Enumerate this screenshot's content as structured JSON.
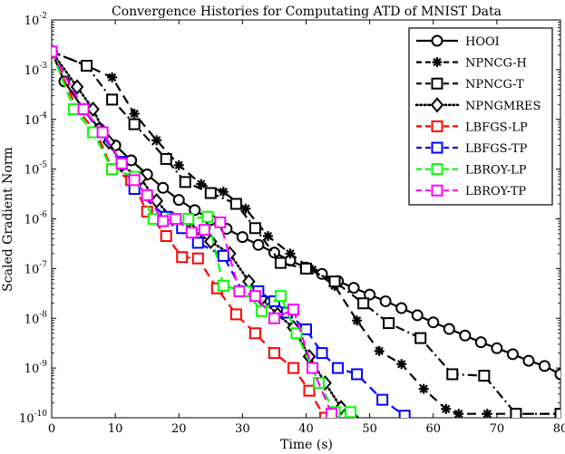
{
  "chart_data": {
    "type": "line",
    "title": "Convergence Histories for Computating ATD of MNIST Data",
    "xlabel": "Time (s)",
    "ylabel": "Scaled Gradient Norm",
    "xlim": [
      0,
      80
    ],
    "ylim": [
      1e-10,
      0.01
    ],
    "yscale": "log",
    "grid": false,
    "legend_position": "top-right",
    "x_ticks": [
      0,
      10,
      20,
      30,
      40,
      50,
      60,
      70,
      80
    ],
    "x_tick_labels": [
      "0",
      "10",
      "20",
      "30",
      "40",
      "50",
      "60",
      "70",
      "80"
    ],
    "y_ticks": [
      -10,
      -9,
      -8,
      -7,
      -6,
      -5,
      -4,
      -3,
      -2
    ],
    "y_tick_labels": [
      {
        "base": "10",
        "exp": "-10"
      },
      {
        "base": "10",
        "exp": "-9"
      },
      {
        "base": "10",
        "exp": "-8"
      },
      {
        "base": "10",
        "exp": "-7"
      },
      {
        "base": "10",
        "exp": "-6"
      },
      {
        "base": "10",
        "exp": "-5"
      },
      {
        "base": "10",
        "exp": "-4"
      },
      {
        "base": "10",
        "exp": "-3"
      },
      {
        "base": "10",
        "exp": "-2"
      }
    ],
    "series": [
      {
        "name": "HOOI",
        "color": "#000000",
        "dash": "solid",
        "marker": "circle",
        "x": [
          0,
          2,
          5,
          7.5,
          10,
          12.5,
          15,
          17.5,
          20,
          22.5,
          25,
          27.5,
          30,
          32.5,
          35,
          37.5,
          40,
          42.5,
          45,
          47.5,
          50,
          52.5,
          55,
          57.5,
          60,
          62.5,
          65,
          67.5,
          70,
          72.5,
          75,
          77.5,
          80
        ],
        "y": [
          0.0023,
          0.00058,
          0.00016,
          6.5e-05,
          3e-05,
          1.5e-05,
          7.8e-06,
          4.2e-06,
          2.4e-06,
          1.5e-06,
          9.5e-07,
          6.3e-07,
          4.3e-07,
          3e-07,
          2.1e-07,
          1.45e-07,
          1.05e-07,
          7.8e-08,
          5.6e-08,
          4.1e-08,
          3e-08,
          2.2e-08,
          1.6e-08,
          1.15e-08,
          8.3e-09,
          6.1e-09,
          4.5e-09,
          3.3e-09,
          2.5e-09,
          1.9e-09,
          1.4e-09,
          1.1e-09,
          7.5e-10
        ]
      },
      {
        "name": "NPNCG-H",
        "color": "#000000",
        "dash": "dashed",
        "marker": "asterisk",
        "x": [
          0,
          5.5,
          9.5,
          13,
          16.5,
          20,
          23.5,
          27,
          30.5,
          34,
          37.5,
          41,
          44.5,
          48,
          51.5,
          55,
          58.5,
          62,
          64,
          68.5,
          80
        ],
        "y": [
          0.0023,
          0.0012,
          0.0007,
          0.00013,
          3.8e-05,
          1.2e-05,
          5e-06,
          3.5e-06,
          1.6e-06,
          4.5e-07,
          2e-07,
          9.5e-08,
          4.5e-08,
          9e-09,
          2.2e-09,
          1.2e-09,
          3.8e-10,
          1.5e-10,
          1.2e-10,
          1.2e-10,
          1.2e-10
        ]
      },
      {
        "name": "NPNCG-T",
        "color": "#000000",
        "dash": "dashdot",
        "marker": "square",
        "x": [
          0,
          5.5,
          9.5,
          13,
          18,
          21,
          25,
          29,
          32,
          36,
          40,
          44.5,
          49,
          53,
          58,
          63,
          68,
          73,
          80
        ],
        "y": [
          0.0023,
          0.0012,
          0.00025,
          8e-05,
          1.6e-05,
          5.5e-06,
          3.3e-06,
          2e-06,
          6.5e-07,
          1.3e-07,
          1e-07,
          5.5e-08,
          2e-08,
          8e-09,
          4e-09,
          7.5e-10,
          7e-10,
          1.2e-10,
          1.2e-10
        ]
      },
      {
        "name": "NPNGMRES",
        "color": "#000000",
        "dash": "dotted",
        "marker": "diamond",
        "x": [
          0,
          4,
          6.5,
          9,
          11,
          14,
          16.5,
          19,
          22,
          25,
          28,
          31,
          33,
          35.5,
          38,
          40.5,
          43,
          45.5,
          48
        ],
        "y": [
          0.0023,
          0.00045,
          0.00016,
          3.5e-05,
          1.2e-05,
          6.5e-06,
          2.3e-06,
          1e-06,
          6e-07,
          3.5e-07,
          2e-07,
          5.5e-08,
          2.5e-08,
          1.2e-08,
          6.5e-09,
          1.7e-09,
          5e-10,
          1.6e-10,
          8e-11
        ]
      },
      {
        "name": "LBFGS-LP",
        "color": "#ff0000",
        "dash": "dashed",
        "marker": "square",
        "x": [
          0,
          4,
          7,
          9.5,
          12.5,
          15,
          18,
          20.5,
          23,
          26,
          29,
          32,
          35,
          38,
          40.5,
          43
        ],
        "y": [
          0.0023,
          0.00016,
          5.5e-05,
          1e-05,
          6e-06,
          1.4e-06,
          4.5e-07,
          1.7e-07,
          1.6e-07,
          4e-08,
          1.2e-08,
          5e-09,
          2e-09,
          1e-09,
          3.5e-10,
          1e-10
        ]
      },
      {
        "name": "LBFGS-TP",
        "color": "#0000ff",
        "dash": "dashed",
        "marker": "square",
        "x": [
          0,
          5,
          11,
          13,
          18,
          20.5,
          23,
          27,
          30,
          32.5,
          35,
          37,
          40,
          42.5,
          45,
          48,
          52,
          55.5
        ],
        "y": [
          0.0023,
          0.00016,
          1.4e-05,
          4e-06,
          1.1e-06,
          6.5e-07,
          3.3e-07,
          1.8e-07,
          3.5e-08,
          3.5e-08,
          2.2e-08,
          1.3e-08,
          6e-09,
          2e-09,
          1e-09,
          7.5e-10,
          2.3e-10,
          1.1e-10
        ]
      },
      {
        "name": "LBROY-LP",
        "color": "#00ff00",
        "dash": "dashed",
        "marker": "square",
        "x": [
          0,
          3.5,
          6.5,
          9.5,
          13,
          16,
          19,
          21.5,
          24.5,
          27,
          30.5,
          33,
          36,
          38.5,
          42,
          44.5,
          47
        ],
        "y": [
          0.0023,
          0.00016,
          5.5e-05,
          1e-05,
          7e-06,
          1e-06,
          1e-06,
          1e-06,
          1.1e-06,
          4.5e-08,
          3.5e-08,
          1.4e-08,
          2.8e-08,
          5e-09,
          5e-10,
          1.3e-10,
          1.3e-10
        ]
      },
      {
        "name": "LBROY-TP",
        "color": "#ff00ff",
        "dash": "dashed",
        "marker": "square",
        "x": [
          0,
          5,
          8,
          11,
          13,
          15,
          17.5,
          19.5,
          22,
          24,
          26.5,
          29.5,
          32,
          35,
          38,
          41,
          44
        ],
        "y": [
          0.0023,
          0.00016,
          5.5e-05,
          1.3e-05,
          6e-06,
          3e-06,
          9e-07,
          1e-06,
          5.3e-07,
          6e-07,
          8.5e-07,
          3.5e-08,
          2.8e-08,
          1e-08,
          1.5e-08,
          1e-09,
          1.2e-10
        ]
      }
    ]
  }
}
